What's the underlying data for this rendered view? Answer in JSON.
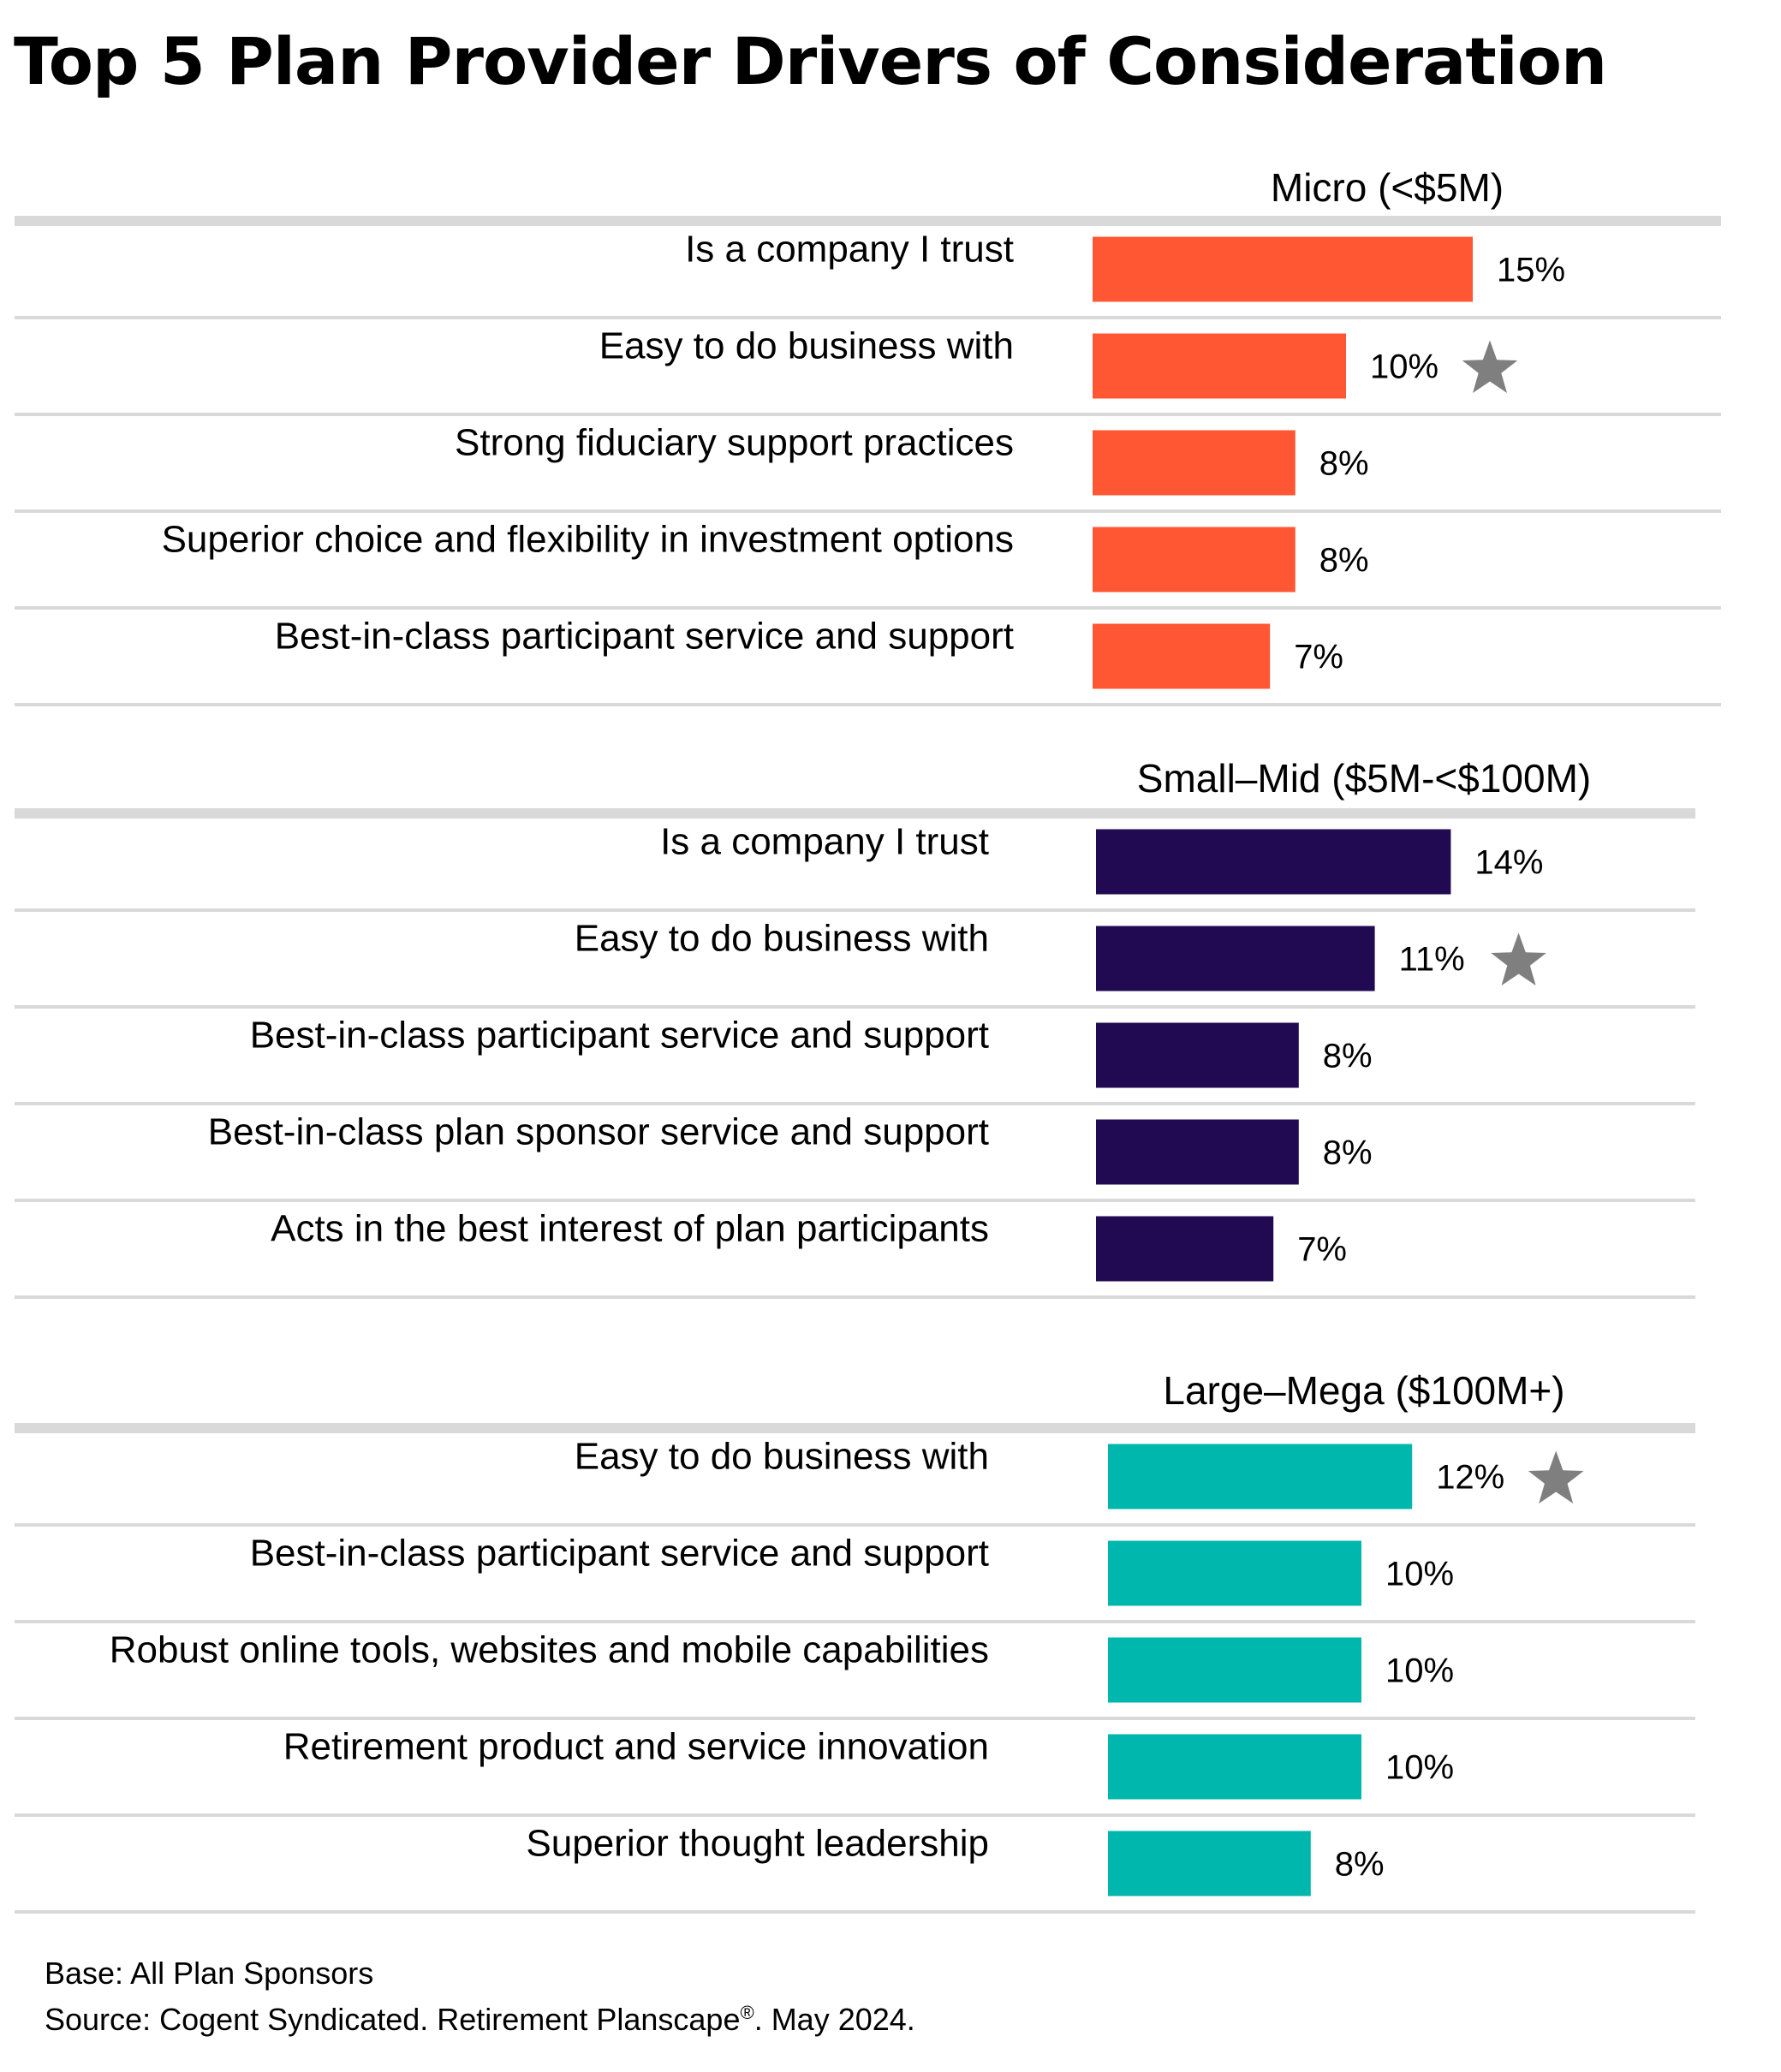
{
  "chart_data": {
    "type": "bar",
    "orientation": "horizontal",
    "title": "Top 5 Plan Provider Drivers of Consideration",
    "value_format": "{v}%",
    "panels": [
      {
        "name": "Micro (<$5M)",
        "color": "#FF5733",
        "categories": [
          "Is a company I trust",
          "Easy to do business with",
          "Strong fiduciary support practices",
          "Superior choice and flexibility in investment options",
          "Best-in-class participant service and support"
        ],
        "values": [
          15,
          10,
          8,
          8,
          7
        ],
        "starred": [
          "Easy to do business with"
        ]
      },
      {
        "name": "Small–Mid ($5M-<$100M)",
        "color": "#210A52",
        "categories": [
          "Is a company I trust",
          "Easy to do business with",
          "Best-in-class participant service and support",
          "Best-in-class plan sponsor service and support",
          "Acts in the best interest of plan participants"
        ],
        "values": [
          14,
          11,
          8,
          8,
          7
        ],
        "starred": [
          "Easy to do business with"
        ]
      },
      {
        "name": "Large–Mega ($100M+)",
        "color": "#00B7AE",
        "categories": [
          "Easy to do business with",
          "Best-in-class participant service and support",
          "Robust online tools, websites and mobile capabilities",
          "Retirement product and service innovation",
          "Superior thought leadership"
        ],
        "values": [
          12,
          10,
          10,
          10,
          8
        ],
        "starred": [
          "Easy to do business with"
        ]
      }
    ],
    "grid": false,
    "legend": "none",
    "star_icon": "star-icon",
    "star_color": "#7F7F7F",
    "divider_color": "#D9D9D9"
  },
  "footer": {
    "base": "Base: All Plan Sponsors",
    "source_prefix": "Source: Cogent Syndicated. Retirement Planscape",
    "source_mark": "®",
    "source_suffix": ". May 2024."
  }
}
